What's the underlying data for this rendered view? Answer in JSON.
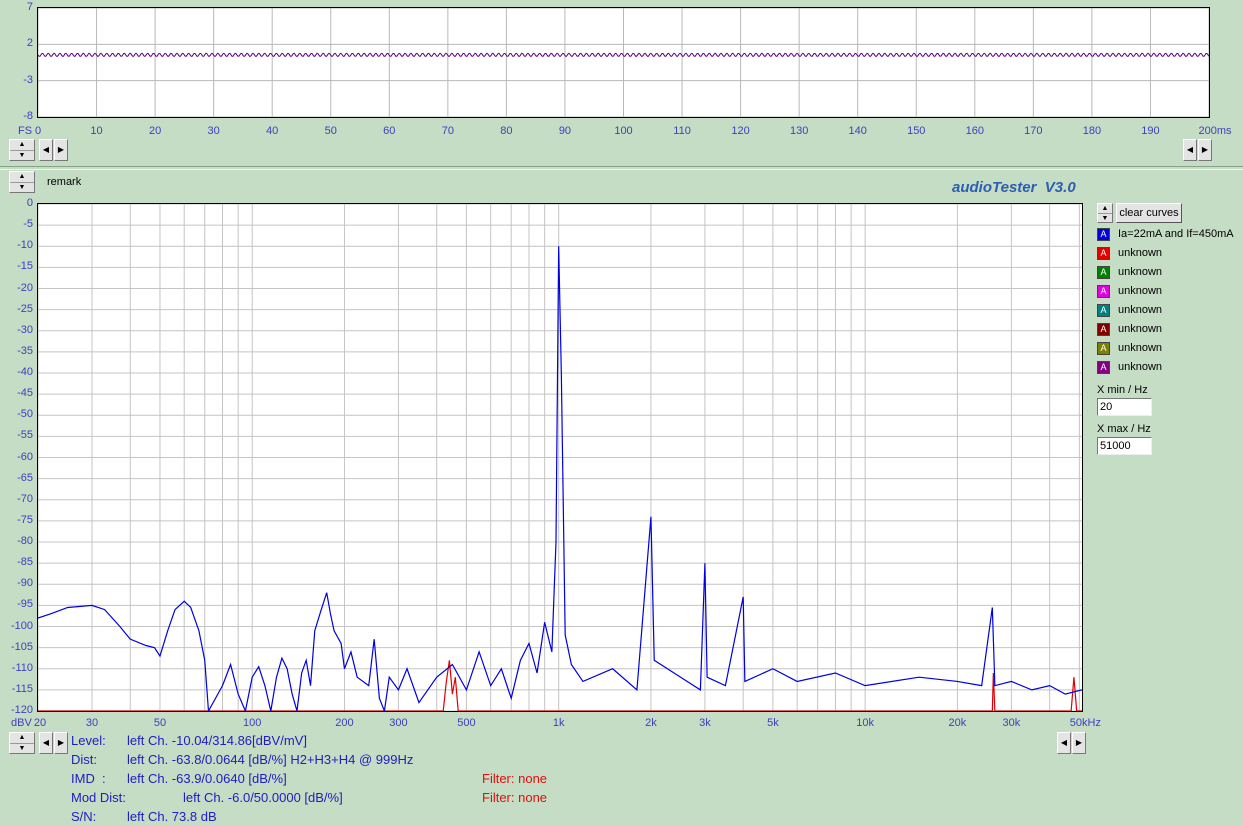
{
  "app": {
    "brand": "audioTester  V3.0"
  },
  "scope": {
    "y_ticks": [
      "7",
      "2",
      "-3",
      "-8"
    ],
    "x_ticks": [
      "0",
      "10",
      "20",
      "30",
      "40",
      "50",
      "60",
      "70",
      "80",
      "90",
      "100",
      "110",
      "120",
      "130",
      "140",
      "150",
      "160",
      "170",
      "180",
      "190",
      "200ms"
    ],
    "x_prefix": "FS"
  },
  "remark_label": "remark",
  "spectrum": {
    "y_ticks": [
      "0",
      "-5",
      "-10",
      "-15",
      "-20",
      "-25",
      "-30",
      "-35",
      "-40",
      "-45",
      "-50",
      "-55",
      "-60",
      "-65",
      "-70",
      "-75",
      "-80",
      "-85",
      "-90",
      "-95",
      "-100",
      "-105",
      "-110",
      "-115",
      "-120"
    ],
    "x_ticks": [
      "20",
      "30",
      "50",
      "100",
      "200",
      "300",
      "500",
      "1k",
      "2k",
      "3k",
      "5k",
      "10k",
      "20k",
      "30k",
      "50kHz"
    ],
    "y_unit": "dBV"
  },
  "legend": {
    "clear_label": "clear curves",
    "curves": [
      {
        "label": "Ia=22mA and If=450mA",
        "color": "#0000e0"
      },
      {
        "label": "unknown",
        "color": "#e00000"
      },
      {
        "label": "unknown",
        "color": "#008000"
      },
      {
        "label": "unknown",
        "color": "#e000e0"
      },
      {
        "label": "unknown",
        "color": "#008080"
      },
      {
        "label": "unknown",
        "color": "#800000"
      },
      {
        "label": "unknown",
        "color": "#808000"
      },
      {
        "label": "unknown",
        "color": "#800080"
      }
    ],
    "xmin_label": "X min / Hz",
    "xmin_value": "20",
    "xmax_label": "X max / Hz",
    "xmax_value": "51000"
  },
  "stats": {
    "level_label": "Level:",
    "level_value": "left Ch. -10.04/314.86[dBV/mV]",
    "dist_label": "Dist:",
    "dist_value": "left Ch. -63.8/0.0644 [dB/%] H2+H3+H4 @ 999Hz",
    "imd_label": "IMD  :",
    "imd_value": "left Ch. -63.9/0.0640 [dB/%]",
    "imd_filter": "Filter: none",
    "mod_label": "Mod Dist:",
    "mod_value": "left Ch. -6.0/50.0000 [dB/%]",
    "mod_filter": "Filter: none",
    "sn_label": "S/N:",
    "sn_value": "left Ch. 73.8 dB"
  },
  "chart_data": {
    "type": "line",
    "xlabel": "",
    "ylabel": "dBV",
    "x_scale": "log",
    "xlim": [
      20,
      51000
    ],
    "ylim": [
      -120,
      0
    ],
    "grid": true,
    "series": [
      {
        "name": "Ia=22mA and If=450mA",
        "color": "#0000e0",
        "points": [
          [
            20,
            -98
          ],
          [
            22,
            -97
          ],
          [
            25,
            -95.5
          ],
          [
            30,
            -95
          ],
          [
            33,
            -96
          ],
          [
            37,
            -100
          ],
          [
            40,
            -103
          ],
          [
            45,
            -104.5
          ],
          [
            48,
            -105
          ],
          [
            50,
            -107
          ],
          [
            53,
            -101
          ],
          [
            56,
            -96
          ],
          [
            60,
            -94
          ],
          [
            63,
            -95.5
          ],
          [
            67,
            -101
          ],
          [
            70,
            -108
          ],
          [
            72,
            -120
          ],
          [
            80,
            -114
          ],
          [
            85,
            -109
          ],
          [
            90,
            -116
          ],
          [
            95,
            -120
          ],
          [
            100,
            -112
          ],
          [
            105,
            -109.5
          ],
          [
            110,
            -114
          ],
          [
            115,
            -120
          ],
          [
            120,
            -112
          ],
          [
            125,
            -107.5
          ],
          [
            130,
            -110
          ],
          [
            135,
            -116
          ],
          [
            140,
            -120
          ],
          [
            145,
            -111
          ],
          [
            150,
            -108
          ],
          [
            155,
            -114
          ],
          [
            160,
            -101
          ],
          [
            168,
            -96
          ],
          [
            175,
            -92
          ],
          [
            180,
            -97
          ],
          [
            185,
            -101
          ],
          [
            195,
            -104
          ],
          [
            200,
            -110
          ],
          [
            210,
            -106
          ],
          [
            220,
            -112
          ],
          [
            240,
            -114
          ],
          [
            250,
            -103
          ],
          [
            260,
            -117
          ],
          [
            270,
            -120
          ],
          [
            280,
            -112
          ],
          [
            300,
            -115
          ],
          [
            320,
            -110
          ],
          [
            350,
            -118
          ],
          [
            400,
            -112
          ],
          [
            450,
            -109
          ],
          [
            500,
            -115
          ],
          [
            550,
            -106
          ],
          [
            600,
            -114
          ],
          [
            650,
            -110
          ],
          [
            700,
            -117
          ],
          [
            750,
            -108
          ],
          [
            800,
            -104
          ],
          [
            850,
            -111
          ],
          [
            900,
            -99
          ],
          [
            950,
            -106
          ],
          [
            980,
            -80
          ],
          [
            1000,
            -10
          ],
          [
            1020,
            -40
          ],
          [
            1050,
            -102
          ],
          [
            1100,
            -109
          ],
          [
            1200,
            -113
          ],
          [
            1500,
            -110
          ],
          [
            1800,
            -115
          ],
          [
            2000,
            -74
          ],
          [
            2050,
            -108
          ],
          [
            2500,
            -112
          ],
          [
            2900,
            -115
          ],
          [
            3000,
            -85
          ],
          [
            3050,
            -112
          ],
          [
            3500,
            -114
          ],
          [
            4000,
            -93
          ],
          [
            4050,
            -113
          ],
          [
            5000,
            -110
          ],
          [
            6000,
            -113
          ],
          [
            8000,
            -111
          ],
          [
            10000,
            -114
          ],
          [
            15000,
            -112
          ],
          [
            20000,
            -113
          ],
          [
            24000,
            -114
          ],
          [
            26000,
            -95.5
          ],
          [
            26500,
            -114
          ],
          [
            30000,
            -113
          ],
          [
            35000,
            -115
          ],
          [
            40000,
            -114
          ],
          [
            45000,
            -116
          ],
          [
            51000,
            -115
          ]
        ]
      },
      {
        "name": "unknown",
        "color": "#e00000",
        "points": [
          [
            20,
            -120
          ],
          [
            420,
            -120
          ],
          [
            430,
            -113
          ],
          [
            440,
            -108
          ],
          [
            450,
            -116
          ],
          [
            460,
            -112
          ],
          [
            470,
            -120
          ],
          [
            26000,
            -120
          ],
          [
            26200,
            -111
          ],
          [
            26500,
            -120
          ],
          [
            47000,
            -120
          ],
          [
            48000,
            -112
          ],
          [
            49000,
            -120
          ],
          [
            51000,
            -120
          ]
        ]
      }
    ]
  }
}
